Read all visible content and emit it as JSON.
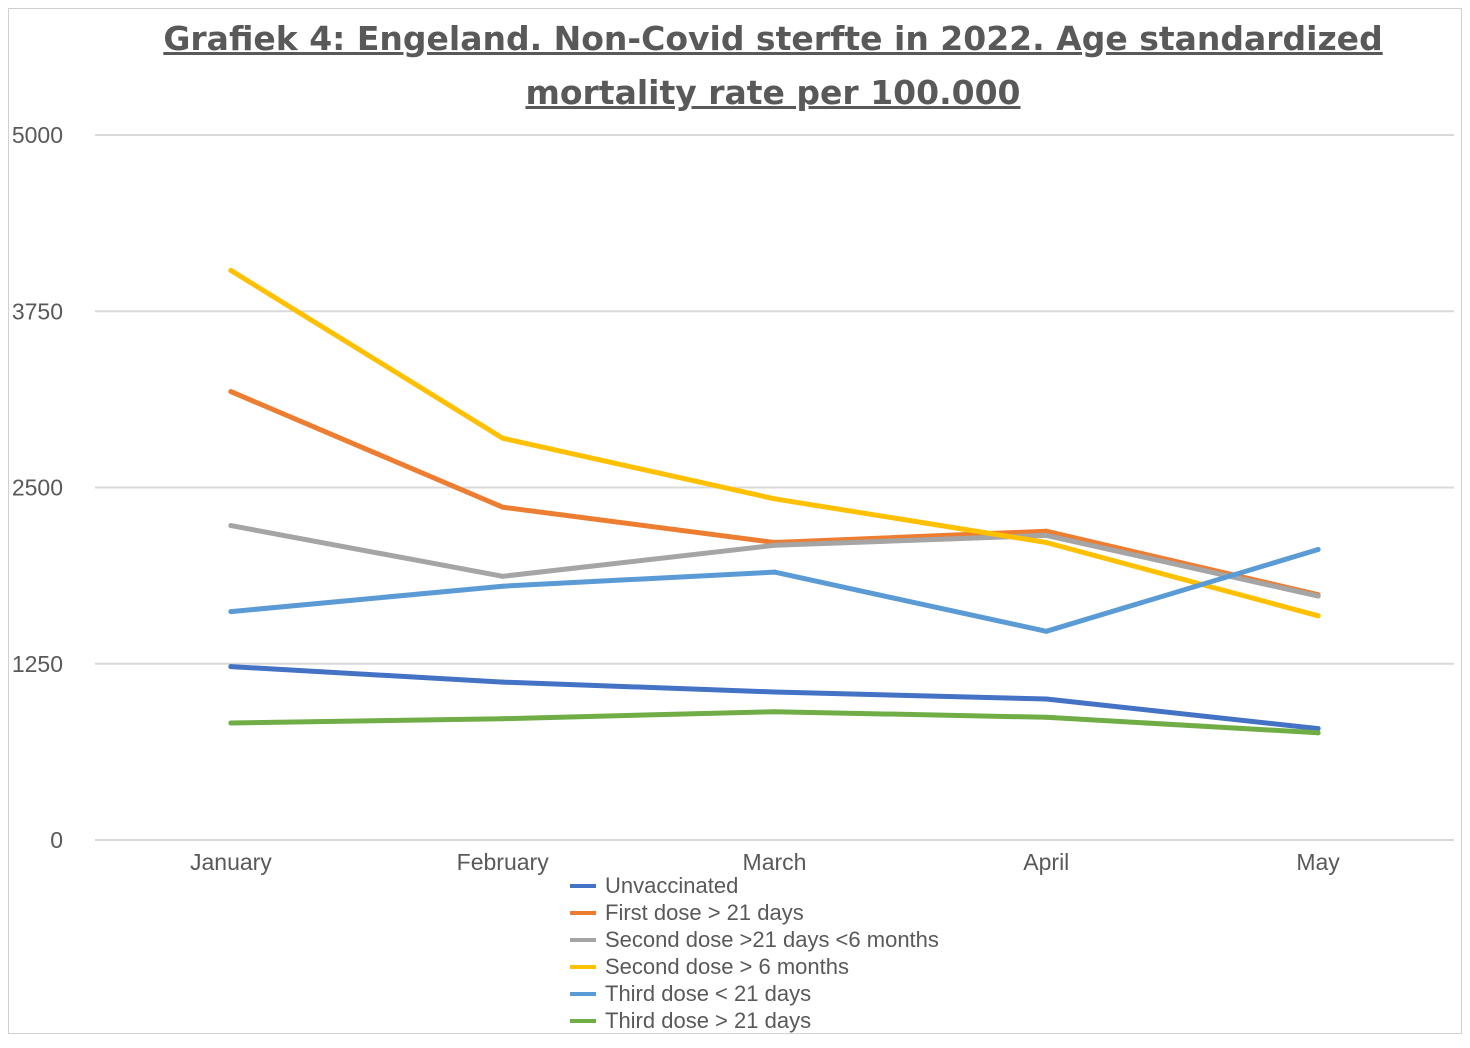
{
  "chart_data": {
    "type": "line",
    "title": "Grafiek 4: Engeland. Non-Covid sterfte in 2022. Age standardized mortality rate per 100.000",
    "categories": [
      "January",
      "February",
      "March",
      "April",
      "May"
    ],
    "ylim": [
      0,
      5000
    ],
    "yticks": [
      "0",
      "1250",
      "2500",
      "3750",
      "5000"
    ],
    "grid": true,
    "legend_position": "bottom",
    "series": [
      {
        "name": "Unvaccinated",
        "color": "#4472C4",
        "values": [
          1230,
          1120,
          1050,
          1000,
          790
        ]
      },
      {
        "name": "First dose > 21 days",
        "color": "#ED7D31",
        "values": [
          3180,
          2360,
          2110,
          2190,
          1740
        ]
      },
      {
        "name": "Second dose >21 days <6 months",
        "color": "#A5A5A5",
        "values": [
          2230,
          1870,
          2090,
          2160,
          1730
        ]
      },
      {
        "name": "Second dose > 6 months",
        "color": "#FFC000",
        "values": [
          4040,
          2850,
          2420,
          2110,
          1590
        ]
      },
      {
        "name": "Third dose < 21 days",
        "color": "#5B9BD5",
        "values": [
          1620,
          1800,
          1900,
          1480,
          2060
        ]
      },
      {
        "name": "Third dose >  21 days",
        "color": "#70AD47",
        "values": [
          830,
          860,
          910,
          870,
          760
        ]
      }
    ]
  }
}
